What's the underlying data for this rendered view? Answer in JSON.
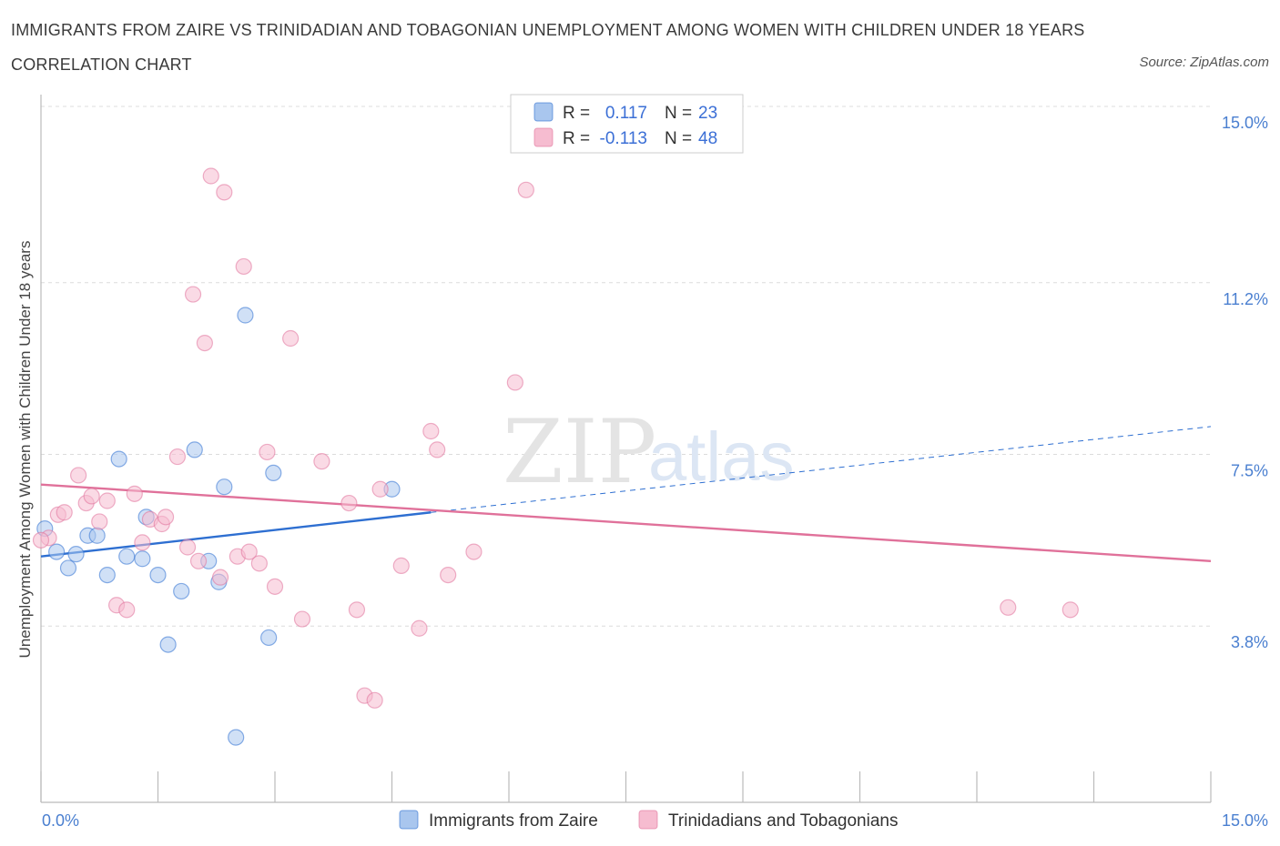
{
  "chart_data": {
    "type": "scatter",
    "title": "IMMIGRANTS FROM ZAIRE VS TRINIDADIAN AND TOBAGONIAN UNEMPLOYMENT AMONG WOMEN WITH CHILDREN UNDER 18 YEARS CORRELATION CHART",
    "source": "Source: ZipAtlas.com",
    "ylabel": "Unemployment Among Women with Children Under 18 years",
    "xlim": [
      0,
      15
    ],
    "ylim": [
      0,
      15
    ],
    "x_tick_labels": [
      "0.0%",
      "15.0%"
    ],
    "y_ticks": [
      {
        "value": 3.8,
        "label": "3.8%"
      },
      {
        "value": 7.5,
        "label": "7.5%"
      },
      {
        "value": 11.2,
        "label": "11.2%"
      },
      {
        "value": 15.0,
        "label": "15.0%"
      }
    ],
    "grid": true,
    "legend_position": "top-center",
    "watermark": {
      "zip": "ZIP",
      "atlas": "atlas"
    },
    "series": [
      {
        "name": "Immigrants from Zaire",
        "color": "#a9c6ee",
        "line_color": "#2e6fd1",
        "R_label": "R =",
        "R": "0.117",
        "N_label": "N =",
        "N": "23",
        "trend": {
          "x": [
            0,
            5.0
          ],
          "y": [
            5.3,
            6.25
          ]
        },
        "trend_extension": {
          "x": [
            5.0,
            15.0
          ],
          "y": [
            6.25,
            8.1
          ]
        },
        "points": [
          {
            "x": 0.05,
            "y": 5.9
          },
          {
            "x": 0.2,
            "y": 5.4
          },
          {
            "x": 0.35,
            "y": 5.05
          },
          {
            "x": 0.45,
            "y": 5.35
          },
          {
            "x": 0.6,
            "y": 5.75
          },
          {
            "x": 0.72,
            "y": 5.75
          },
          {
            "x": 0.85,
            "y": 4.9
          },
          {
            "x": 1.0,
            "y": 7.4
          },
          {
            "x": 1.1,
            "y": 5.3
          },
          {
            "x": 1.3,
            "y": 5.25
          },
          {
            "x": 1.35,
            "y": 6.15
          },
          {
            "x": 1.5,
            "y": 4.9
          },
          {
            "x": 1.63,
            "y": 3.4
          },
          {
            "x": 1.8,
            "y": 4.55
          },
          {
            "x": 1.97,
            "y": 7.6
          },
          {
            "x": 2.15,
            "y": 5.2
          },
          {
            "x": 2.28,
            "y": 4.75
          },
          {
            "x": 2.35,
            "y": 6.8
          },
          {
            "x": 2.5,
            "y": 1.4
          },
          {
            "x": 2.62,
            "y": 10.5
          },
          {
            "x": 2.92,
            "y": 3.55
          },
          {
            "x": 2.98,
            "y": 7.1
          },
          {
            "x": 4.5,
            "y": 6.75
          }
        ]
      },
      {
        "name": "Trinidadians and Tobagonians",
        "color": "#f6bcd0",
        "line_color": "#e0719a",
        "R_label": "R =",
        "R": "-0.113",
        "N_label": "N =",
        "N": "48",
        "trend": {
          "x": [
            0,
            15.0
          ],
          "y": [
            6.85,
            5.2
          ]
        },
        "points": [
          {
            "x": 0.1,
            "y": 5.7
          },
          {
            "x": 0.22,
            "y": 6.2
          },
          {
            "x": 0.3,
            "y": 6.25
          },
          {
            "x": 0.48,
            "y": 7.05
          },
          {
            "x": 0.58,
            "y": 6.45
          },
          {
            "x": 0.65,
            "y": 6.6
          },
          {
            "x": 0.75,
            "y": 6.05
          },
          {
            "x": 0.85,
            "y": 6.5
          },
          {
            "x": 0.97,
            "y": 4.25
          },
          {
            "x": 1.1,
            "y": 4.15
          },
          {
            "x": 1.2,
            "y": 6.65
          },
          {
            "x": 1.3,
            "y": 5.6
          },
          {
            "x": 1.4,
            "y": 6.1
          },
          {
            "x": 1.55,
            "y": 6.0
          },
          {
            "x": 1.6,
            "y": 6.15
          },
          {
            "x": 1.75,
            "y": 7.45
          },
          {
            "x": 1.88,
            "y": 5.5
          },
          {
            "x": 1.95,
            "y": 10.95
          },
          {
            "x": 2.02,
            "y": 5.2
          },
          {
            "x": 2.1,
            "y": 9.9
          },
          {
            "x": 2.18,
            "y": 13.5
          },
          {
            "x": 2.3,
            "y": 4.85
          },
          {
            "x": 2.35,
            "y": 13.15
          },
          {
            "x": 2.52,
            "y": 5.3
          },
          {
            "x": 2.6,
            "y": 11.55
          },
          {
            "x": 2.67,
            "y": 5.4
          },
          {
            "x": 2.8,
            "y": 5.15
          },
          {
            "x": 2.9,
            "y": 7.55
          },
          {
            "x": 3.0,
            "y": 4.65
          },
          {
            "x": 3.2,
            "y": 10.0
          },
          {
            "x": 3.35,
            "y": 3.95
          },
          {
            "x": 3.6,
            "y": 7.35
          },
          {
            "x": 3.95,
            "y": 6.45
          },
          {
            "x": 4.05,
            "y": 4.15
          },
          {
            "x": 4.15,
            "y": 2.3
          },
          {
            "x": 4.28,
            "y": 2.2
          },
          {
            "x": 4.35,
            "y": 6.75
          },
          {
            "x": 4.62,
            "y": 5.1
          },
          {
            "x": 4.85,
            "y": 3.75
          },
          {
            "x": 5.0,
            "y": 8.0
          },
          {
            "x": 5.08,
            "y": 7.6
          },
          {
            "x": 5.22,
            "y": 4.9
          },
          {
            "x": 5.55,
            "y": 5.4
          },
          {
            "x": 6.08,
            "y": 9.05
          },
          {
            "x": 6.22,
            "y": 13.2
          },
          {
            "x": 12.4,
            "y": 4.2
          },
          {
            "x": 13.2,
            "y": 4.15
          },
          {
            "x": 0.0,
            "y": 5.65
          }
        ]
      }
    ]
  }
}
